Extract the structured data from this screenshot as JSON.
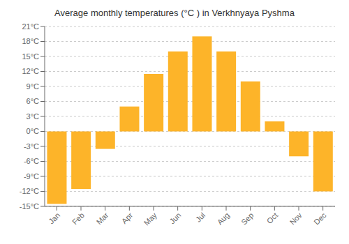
{
  "chart_data": {
    "type": "bar",
    "title": "Average monthly temperatures (°C ) in Verkhnyaya Pyshma",
    "categories": [
      "Jan",
      "Feb",
      "Mar",
      "Apr",
      "May",
      "Jun",
      "Jul",
      "Aug",
      "Sep",
      "Oct",
      "Nov",
      "Dec"
    ],
    "values": [
      -14.5,
      -11.5,
      -3.5,
      5.0,
      11.5,
      16.0,
      19.0,
      16.0,
      10.0,
      2.0,
      -5.0,
      -12.0
    ],
    "color": "#FDB429",
    "ylim": [
      -15,
      21
    ],
    "yticks": [
      {
        "value": -15,
        "label": "-15°C"
      },
      {
        "value": -12,
        "label": "-12°C"
      },
      {
        "value": -9,
        "label": "-9°C"
      },
      {
        "value": -6,
        "label": "-6°C"
      },
      {
        "value": -3,
        "label": "-3°C"
      },
      {
        "value": 0,
        "label": "0°C"
      },
      {
        "value": 3,
        "label": "3°C"
      },
      {
        "value": 6,
        "label": "6°C"
      },
      {
        "value": 9,
        "label": "9°C"
      },
      {
        "value": 12,
        "label": "12°C"
      },
      {
        "value": 15,
        "label": "15°C"
      },
      {
        "value": 18,
        "label": "18°C"
      },
      {
        "value": 21,
        "label": "21°C"
      }
    ],
    "grid": true
  }
}
